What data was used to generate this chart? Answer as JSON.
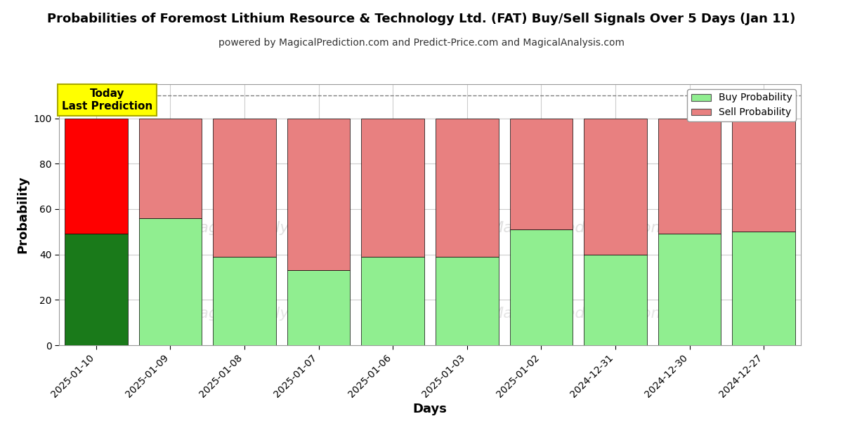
{
  "title": "Probabilities of Foremost Lithium Resource & Technology Ltd. (FAT) Buy/Sell Signals Over 5 Days (Jan 11)",
  "subtitle": "powered by MagicalPrediction.com and Predict-Price.com and MagicalAnalysis.com",
  "xlabel": "Days",
  "ylabel": "Probability",
  "categories": [
    "2025-01-10",
    "2025-01-09",
    "2025-01-08",
    "2025-01-07",
    "2025-01-06",
    "2025-01-03",
    "2025-01-02",
    "2024-12-31",
    "2024-12-30",
    "2024-12-27"
  ],
  "buy_values": [
    49,
    56,
    39,
    33,
    39,
    39,
    51,
    40,
    49,
    50
  ],
  "sell_values": [
    51,
    44,
    61,
    67,
    61,
    61,
    49,
    60,
    51,
    50
  ],
  "buy_colors": [
    "#1a7a1a",
    "#90ee90",
    "#90ee90",
    "#90ee90",
    "#90ee90",
    "#90ee90",
    "#90ee90",
    "#90ee90",
    "#90ee90",
    "#90ee90"
  ],
  "sell_colors": [
    "#ff0000",
    "#e88080",
    "#e88080",
    "#e88080",
    "#e88080",
    "#e88080",
    "#e88080",
    "#e88080",
    "#e88080",
    "#e88080"
  ],
  "buy_legend_color": "#90ee90",
  "sell_legend_color": "#e88080",
  "today_label": "Today\nLast Prediction",
  "today_label_bg": "#ffff00",
  "ylim_max": 115,
  "dashed_line_y": 110,
  "yticks": [
    0,
    20,
    40,
    60,
    80,
    100
  ],
  "background_color": "#ffffff",
  "grid_color": "#cccccc",
  "bar_width": 0.85
}
